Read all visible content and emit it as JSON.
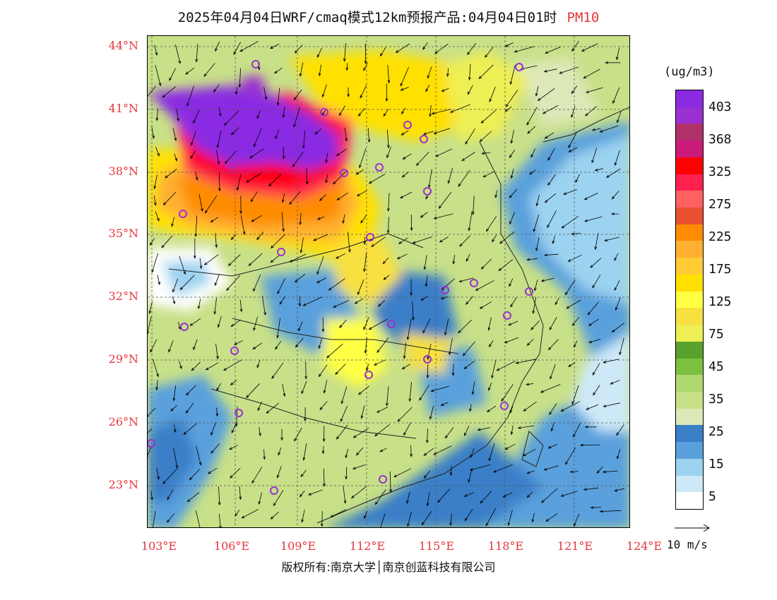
{
  "header": {
    "title": "2025年04月04日WRF/cmaq模式12km预报产品:04月04日01时",
    "pollutant": "PM10"
  },
  "map": {
    "lat_labels": [
      "44°N",
      "41°N",
      "38°N",
      "35°N",
      "32°N",
      "29°N",
      "26°N",
      "23°N"
    ],
    "lon_labels": [
      "103°E",
      "106°E",
      "109°E",
      "112°E",
      "115°E",
      "118°E",
      "121°E",
      "124°E"
    ]
  },
  "legend": {
    "unit": "(ug/m3)",
    "levels": [
      "403",
      "368",
      "325",
      "275",
      "225",
      "175",
      "125",
      "75",
      "45",
      "35",
      "25",
      "15",
      "5"
    ],
    "colors": [
      "#8a2be2",
      "#9b30d0",
      "#b0306a",
      "#cc1a7a",
      "#ff0000",
      "#ff2050",
      "#ff6060",
      "#e85030",
      "#ff8c00",
      "#ffb030",
      "#ffcc33",
      "#ffe000",
      "#ffff44",
      "#f7e040",
      "#eeee55",
      "#5aa02c",
      "#7cc040",
      "#b0d870",
      "#c8e088",
      "#dde8b8",
      "#3a7fc8",
      "#5aa0dc",
      "#9cd3f0",
      "#cde9f7",
      "#ffffff"
    ]
  },
  "wind_reference": {
    "label": "10 m/s"
  },
  "footer": {
    "copyright": "版权所有:南京大学│南京创蓝科技有限公司"
  }
}
